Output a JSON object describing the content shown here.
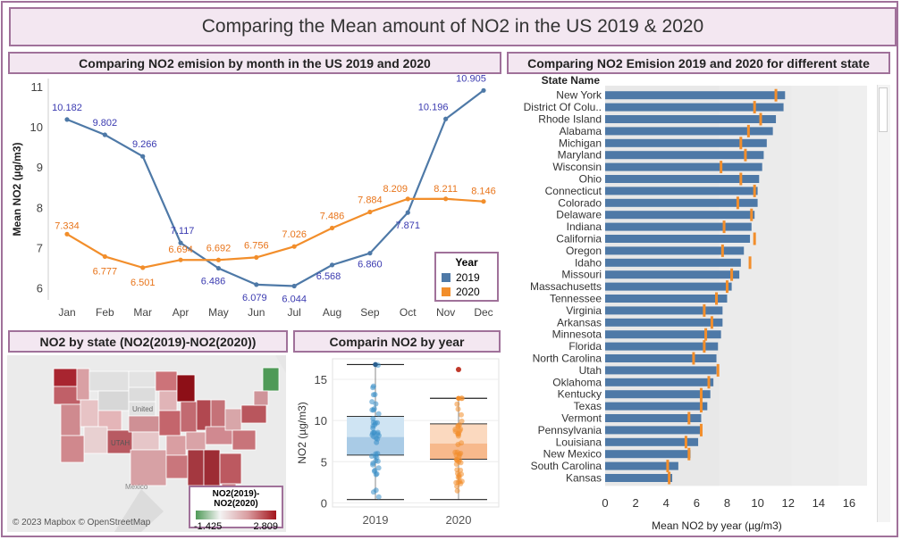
{
  "main_title": "Comparing the Mean amount of NO2 in the US 2019 & 2020",
  "line_panel": {
    "title": "Comparing NO2 emision by month in the US 2019 and 2020"
  },
  "bar_panel": {
    "title": "Comparing NO2 Emision 2019 and 2020 for different state"
  },
  "map_panel": {
    "title": "NO2 by state (NO2(2019)-NO2(2020))",
    "legend_title": "NO2(2019)-NO2(2020)",
    "legend_min": "-1.425",
    "legend_max": "2.809",
    "copyright": "© 2023 Mapbox © OpenStreetMap",
    "label_utah": "UTAH",
    "label_united": "United",
    "label_mexico": "Mexico",
    "colors": {
      "low": "#4f9a57",
      "high": "#a3141b"
    }
  },
  "box_panel": {
    "title": "Comparin NO2 by year"
  },
  "colors": {
    "s2019": "#4e79a7",
    "s2020": "#f28e2b",
    "border": "#a0719a",
    "header_bg": "#f3e7f1"
  },
  "chart_data": [
    {
      "type": "line",
      "title": "Comparing NO2 emision by month in the US 2019 and 2020",
      "ylabel": "Mean NO2 (µg/m3)",
      "categories": [
        "Jan",
        "Feb",
        "Mar",
        "Apr",
        "May",
        "Jun",
        "Jul",
        "Aug",
        "Sep",
        "Oct",
        "Nov",
        "Dec"
      ],
      "ylim": [
        5.7,
        11.2
      ],
      "yticks": [
        6,
        7,
        8,
        9,
        10,
        11
      ],
      "legend_title": "Year",
      "legend_position": "bottom-right",
      "series": [
        {
          "name": "2019",
          "color": "#4e79a7",
          "values": [
            10.182,
            9.802,
            9.266,
            7.117,
            6.486,
            6.079,
            6.044,
            6.568,
            6.86,
            7.871,
            10.196,
            10.905
          ],
          "labels": [
            "10.182",
            "9.802",
            "9.266",
            "7.117",
            "6.486",
            "6.079",
            "6.044",
            "6.568",
            "6.860",
            "7.871",
            "10.196",
            "10.905"
          ]
        },
        {
          "name": "2020",
          "color": "#f28e2b",
          "values": [
            7.334,
            6.777,
            6.501,
            6.694,
            6.692,
            6.756,
            7.026,
            7.486,
            7.884,
            8.209,
            8.211,
            8.146
          ],
          "labels": [
            "7.334",
            "6.777",
            "6.501",
            "6.694",
            "6.692",
            "6.756",
            "7.026",
            "7.486",
            "7.884",
            "8.209",
            "8.211",
            "8.146"
          ]
        }
      ]
    },
    {
      "type": "bar",
      "title": "Comparing NO2 Emision 2019 and 2020 for different state",
      "row_header": "State Name",
      "xlabel": "Mean NO2 by year (µg/m3)",
      "xlim": [
        0,
        17
      ],
      "xticks": [
        0,
        2,
        4,
        6,
        8,
        10,
        12,
        14,
        16
      ],
      "categories": [
        "New York",
        "District Of Colu..",
        "Rhode Island",
        "Alabama",
        "Michigan",
        "Maryland",
        "Wisconsin",
        "Ohio",
        "Connecticut",
        "Colorado",
        "Delaware",
        "Indiana",
        "California",
        "Oregon",
        "Idaho",
        "Missouri",
        "Massachusetts",
        "Tennessee",
        "Virginia",
        "Arkansas",
        "Minnesota",
        "Florida",
        "North Carolina",
        "Utah",
        "Oklahoma",
        "Kentucky",
        "Texas",
        "Vermont",
        "Pennsylvania",
        "Louisiana",
        "New Mexico",
        "South Carolina",
        "Kansas"
      ],
      "series": [
        {
          "name": "2019",
          "values": [
            11.8,
            11.7,
            11.2,
            11.0,
            10.6,
            10.4,
            10.3,
            10.1,
            10.0,
            10.0,
            9.8,
            9.6,
            9.5,
            9.1,
            8.9,
            8.8,
            8.3,
            8.0,
            7.7,
            7.7,
            7.6,
            7.4,
            7.3,
            7.3,
            7.1,
            6.9,
            6.7,
            6.3,
            6.3,
            6.1,
            5.6,
            4.8,
            4.4
          ]
        },
        {
          "name": "2020",
          "values": [
            11.2,
            9.8,
            10.2,
            9.4,
            8.9,
            9.2,
            7.6,
            8.9,
            9.8,
            8.7,
            9.6,
            7.8,
            9.8,
            7.7,
            9.5,
            8.3,
            8.0,
            7.3,
            6.5,
            7.0,
            6.6,
            6.5,
            5.8,
            7.4,
            6.8,
            6.3,
            6.3,
            5.5,
            6.3,
            5.3,
            5.5,
            4.1,
            4.2
          ]
        }
      ]
    },
    {
      "type": "box",
      "title": "Comparin NO2 by year",
      "ylabel": "NO2 (µg/m3)",
      "categories": [
        "2019",
        "2020"
      ],
      "ylim": [
        -0.5,
        17.5
      ],
      "yticks": [
        0,
        5,
        10,
        15
      ],
      "boxes": [
        {
          "name": "2019",
          "min": 0.4,
          "q1": 5.8,
          "median": 8.0,
          "q3": 10.5,
          "max": 16.8
        },
        {
          "name": "2020",
          "min": 0.4,
          "q1": 5.3,
          "median": 7.2,
          "q3": 9.6,
          "max": 12.7
        }
      ],
      "outliers": {
        "2020": [
          16.2
        ]
      }
    }
  ]
}
